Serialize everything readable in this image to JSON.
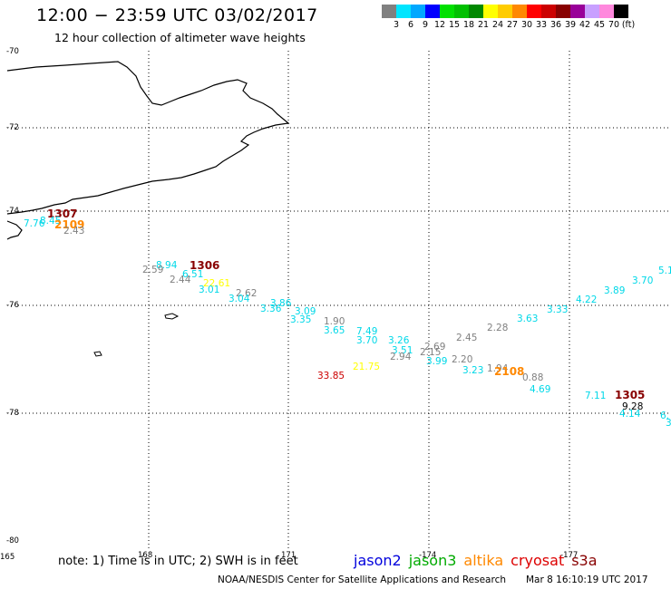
{
  "title": "12:00 − 23:59 UTC 03/02/2017",
  "subtitle": "12 hour collection of altimeter wave heights",
  "colorbar": {
    "colors": [
      "#808080",
      "#00e5ff",
      "#00a8ff",
      "#0000ff",
      "#00e000",
      "#00c000",
      "#008800",
      "#ffff00",
      "#ffcc00",
      "#ff8800",
      "#ff0000",
      "#cc0000",
      "#880000",
      "#990099",
      "#c8a0ff",
      "#ff88dd",
      "#000000"
    ],
    "labels": [
      "3",
      "6",
      "9",
      "12",
      "15",
      "18",
      "21",
      "24",
      "27",
      "30",
      "33",
      "36",
      "39",
      "42",
      "45",
      "70",
      "(ft)"
    ]
  },
  "axes": {
    "lat_labels": [
      "-70",
      "-72",
      "-74",
      "-76",
      "-78",
      "-80"
    ],
    "lon_labels": [
      "165",
      "168",
      "171",
      "-174",
      "-177"
    ]
  },
  "observations": [
    {
      "text": "1307",
      "color": "#880000",
      "big": true
    },
    {
      "text": "7.76",
      "color": "#00d8e8"
    },
    {
      "text": "8.45",
      "color": "#00d8e8"
    },
    {
      "text": "2109",
      "color": "#ff8800",
      "big": true
    },
    {
      "text": "2.43",
      "color": "#808080"
    },
    {
      "text": "8.94",
      "color": "#00d8e8"
    },
    {
      "text": "1306",
      "color": "#880000",
      "big": true
    },
    {
      "text": "2.59",
      "color": "#808080"
    },
    {
      "text": "6.51",
      "color": "#00d8e8"
    },
    {
      "text": "2.44",
      "color": "#808080"
    },
    {
      "text": "22.61",
      "color": "#ffff00"
    },
    {
      "text": "3.01",
      "color": "#00d8e8"
    },
    {
      "text": "2.62",
      "color": "#808080"
    },
    {
      "text": "3.04",
      "color": "#00d8e8"
    },
    {
      "text": "3.86",
      "color": "#00d8e8"
    },
    {
      "text": "3.36",
      "color": "#00d8e8"
    },
    {
      "text": "3.09",
      "color": "#00d8e8"
    },
    {
      "text": "3.35",
      "color": "#00d8e8"
    },
    {
      "text": "1.90",
      "color": "#808080"
    },
    {
      "text": "3.65",
      "color": "#00d8e8"
    },
    {
      "text": "7.49",
      "color": "#00d8e8"
    },
    {
      "text": "3.70",
      "color": "#00d8e8"
    },
    {
      "text": "3.26",
      "color": "#00d8e8"
    },
    {
      "text": "3.51",
      "color": "#00d8e8"
    },
    {
      "text": "2.69",
      "color": "#808080"
    },
    {
      "text": "2.15",
      "color": "#808080"
    },
    {
      "text": "2.94",
      "color": "#808080"
    },
    {
      "text": "3.99",
      "color": "#00d8e8"
    },
    {
      "text": "21.75",
      "color": "#ffff00"
    },
    {
      "text": "33.85",
      "color": "#cc0000"
    },
    {
      "text": "2.45",
      "color": "#808080"
    },
    {
      "text": "2.28",
      "color": "#808080"
    },
    {
      "text": "2.20",
      "color": "#808080"
    },
    {
      "text": "3.23",
      "color": "#00d8e8"
    },
    {
      "text": "1.94",
      "color": "#808080"
    },
    {
      "text": "2108",
      "color": "#ff8800",
      "big": true
    },
    {
      "text": "0.88",
      "color": "#808080"
    },
    {
      "text": "4.69",
      "color": "#00d8e8"
    },
    {
      "text": "3.63",
      "color": "#00d8e8"
    },
    {
      "text": "3.33",
      "color": "#00d8e8"
    },
    {
      "text": "4.22",
      "color": "#00d8e8"
    },
    {
      "text": "3.89",
      "color": "#00d8e8"
    },
    {
      "text": "3.70",
      "color": "#00d8e8"
    },
    {
      "text": "5.1",
      "color": "#00d8e8"
    },
    {
      "text": "7.11",
      "color": "#00d8e8"
    },
    {
      "text": "1305",
      "color": "#880000",
      "big": true
    },
    {
      "text": "9.28",
      "color": "#000000"
    },
    {
      "text": "4.14",
      "color": "#00d8e8"
    },
    {
      "text": "6.",
      "color": "#00d8e8"
    },
    {
      "text": "3",
      "color": "#00d8e8"
    }
  ],
  "note": "note: 1) Time is in UTC; 2) SWH is in feet",
  "legend": [
    {
      "text": "jason2",
      "color": "#0000dd"
    },
    {
      "text": "jason3",
      "color": "#00aa00"
    },
    {
      "text": "altika",
      "color": "#ff8800"
    },
    {
      "text": "cryosat",
      "color": "#dd0000"
    },
    {
      "text": "s3a",
      "color": "#880000"
    }
  ],
  "credit": "NOAA/NESDIS Center for Satellite Applications and Research",
  "timestamp": "Mar  8 16:10:19 UTC 2017"
}
